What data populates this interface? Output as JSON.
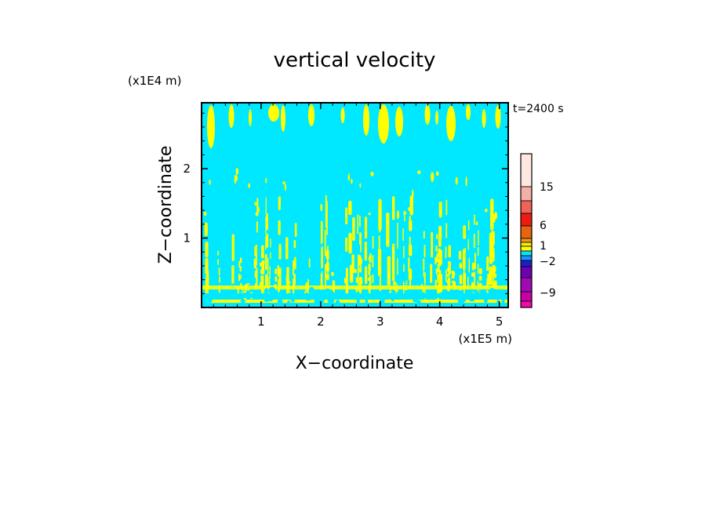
{
  "chart_data": {
    "type": "heatmap",
    "title": "vertical velocity",
    "xlabel": "X−coordinate",
    "ylabel": "Z−coordinate",
    "x_unit": "(x1E5 m)",
    "y_unit": "(x1E4 m)",
    "time_label": "t=2400 s",
    "xlim": [
      0,
      5.15
    ],
    "ylim": [
      0,
      2.95
    ],
    "x_ticks": [
      1,
      2,
      3,
      4,
      5
    ],
    "y_ticks": [
      1,
      2
    ],
    "grid": false,
    "field_description": "background mostly in the -2..1 band (cyan), with yellow (1..2) streaks throughout; dense alternating streaks below z~1.5E4 m, broad patches near the top",
    "colorbar": {
      "labels": [
        {
          "text": "15",
          "value": 15
        },
        {
          "text": "6",
          "value": 6
        },
        {
          "text": "1",
          "value": 1
        },
        {
          "text": "−2",
          "value": -2
        },
        {
          "text": "−9",
          "value": -9
        }
      ],
      "colors_top_to_bottom": [
        "#ffe8e0",
        "#f4b0a8",
        "#ee6458",
        "#ee1c10",
        "#e86410",
        "#f09c10",
        "#f8e810",
        "#ffff00",
        "#00e8ff",
        "#1496ff",
        "#1e1ec8",
        "#6e00b4",
        "#a00ab4",
        "#c800a8",
        "#f00aa6"
      ]
    },
    "colors": {
      "background_band": "#00e8ff",
      "positive_streaks": "#ffff00",
      "weak_negative": "#1496ff"
    }
  }
}
